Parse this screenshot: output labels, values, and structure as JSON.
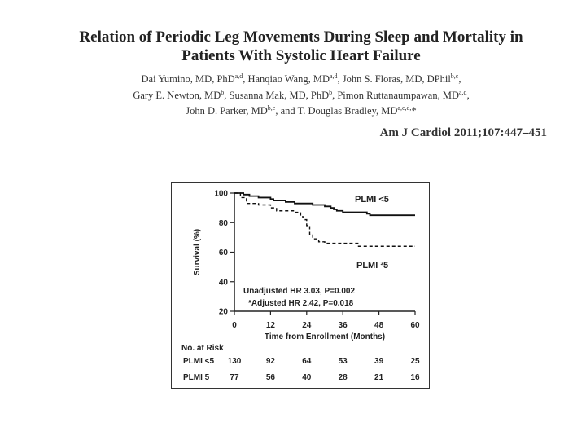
{
  "paper": {
    "title_line1": "Relation of Periodic Leg Movements During Sleep and Mortality in",
    "title_line2": "Patients With Systolic Heart Failure",
    "authors": [
      [
        {
          "t": "Dai Yumino, MD, PhD"
        },
        {
          "sup": "a,d"
        },
        {
          "t": ", Hanqiao Wang, MD"
        },
        {
          "sup": "a,d"
        },
        {
          "t": ", John S. Floras, MD, DPhil"
        },
        {
          "sup": "b,c"
        },
        {
          "t": ","
        }
      ],
      [
        {
          "t": "Gary E. Newton, MD"
        },
        {
          "sup": "b"
        },
        {
          "t": ", Susanna Mak, MD, PhD"
        },
        {
          "sup": "b"
        },
        {
          "t": ", Pimon Ruttanaumpawan, MD"
        },
        {
          "sup": "a,d"
        },
        {
          "t": ","
        }
      ],
      [
        {
          "t": "John D. Parker, MD"
        },
        {
          "sup": "b,c"
        },
        {
          "t": ", and T. Douglas Bradley, MD"
        },
        {
          "sup": "a,c,d,"
        },
        {
          "t": "*"
        }
      ]
    ],
    "citation": "Am J Cardiol 2011;107:447–451"
  },
  "chart_data": {
    "type": "line",
    "xlabel": "Time from Enrollment (Months)",
    "ylabel": "Survival (%)",
    "xlim": [
      0,
      60
    ],
    "ylim": [
      20,
      100
    ],
    "xticks": [
      0,
      12,
      24,
      36,
      48,
      60
    ],
    "yticks": [
      20,
      40,
      60,
      80,
      100
    ],
    "series": [
      {
        "name": "PLMI <5",
        "style": "solid",
        "points": [
          [
            0,
            100
          ],
          [
            3,
            99
          ],
          [
            5,
            98
          ],
          [
            8,
            97
          ],
          [
            12,
            96
          ],
          [
            13,
            95
          ],
          [
            17,
            94
          ],
          [
            20,
            93
          ],
          [
            24,
            93
          ],
          [
            26,
            92
          ],
          [
            30,
            91
          ],
          [
            32,
            90
          ],
          [
            33,
            89
          ],
          [
            34,
            88
          ],
          [
            36,
            87
          ],
          [
            40,
            87
          ],
          [
            44,
            86
          ],
          [
            45,
            85
          ],
          [
            50,
            85
          ],
          [
            55,
            85
          ],
          [
            60,
            85
          ]
        ]
      },
      {
        "name": "PLMI ³5",
        "style": "dashed",
        "points": [
          [
            0,
            100
          ],
          [
            2,
            97
          ],
          [
            4,
            93
          ],
          [
            8,
            92
          ],
          [
            12,
            90
          ],
          [
            14,
            88
          ],
          [
            20,
            87
          ],
          [
            22,
            84
          ],
          [
            23,
            82
          ],
          [
            24,
            78
          ],
          [
            25,
            72
          ],
          [
            26,
            69
          ],
          [
            28,
            67
          ],
          [
            30,
            66
          ],
          [
            36,
            66
          ],
          [
            40,
            66
          ],
          [
            41,
            64
          ],
          [
            45,
            64
          ],
          [
            50,
            64
          ],
          [
            55,
            64
          ],
          [
            60,
            64
          ]
        ]
      }
    ],
    "annotations": {
      "unadjusted": "Unadjusted HR 3.03, P=0.002",
      "adjusted": "*Adjusted HR 2.42, P=0.018"
    },
    "risk_table": {
      "heading": "No. at Risk",
      "rows": [
        {
          "label": "PLMI <5",
          "values": [
            130,
            92,
            64,
            53,
            39,
            25
          ]
        },
        {
          "label": "PLMI  5",
          "values": [
            77,
            56,
            40,
            28,
            21,
            16
          ]
        }
      ]
    }
  }
}
